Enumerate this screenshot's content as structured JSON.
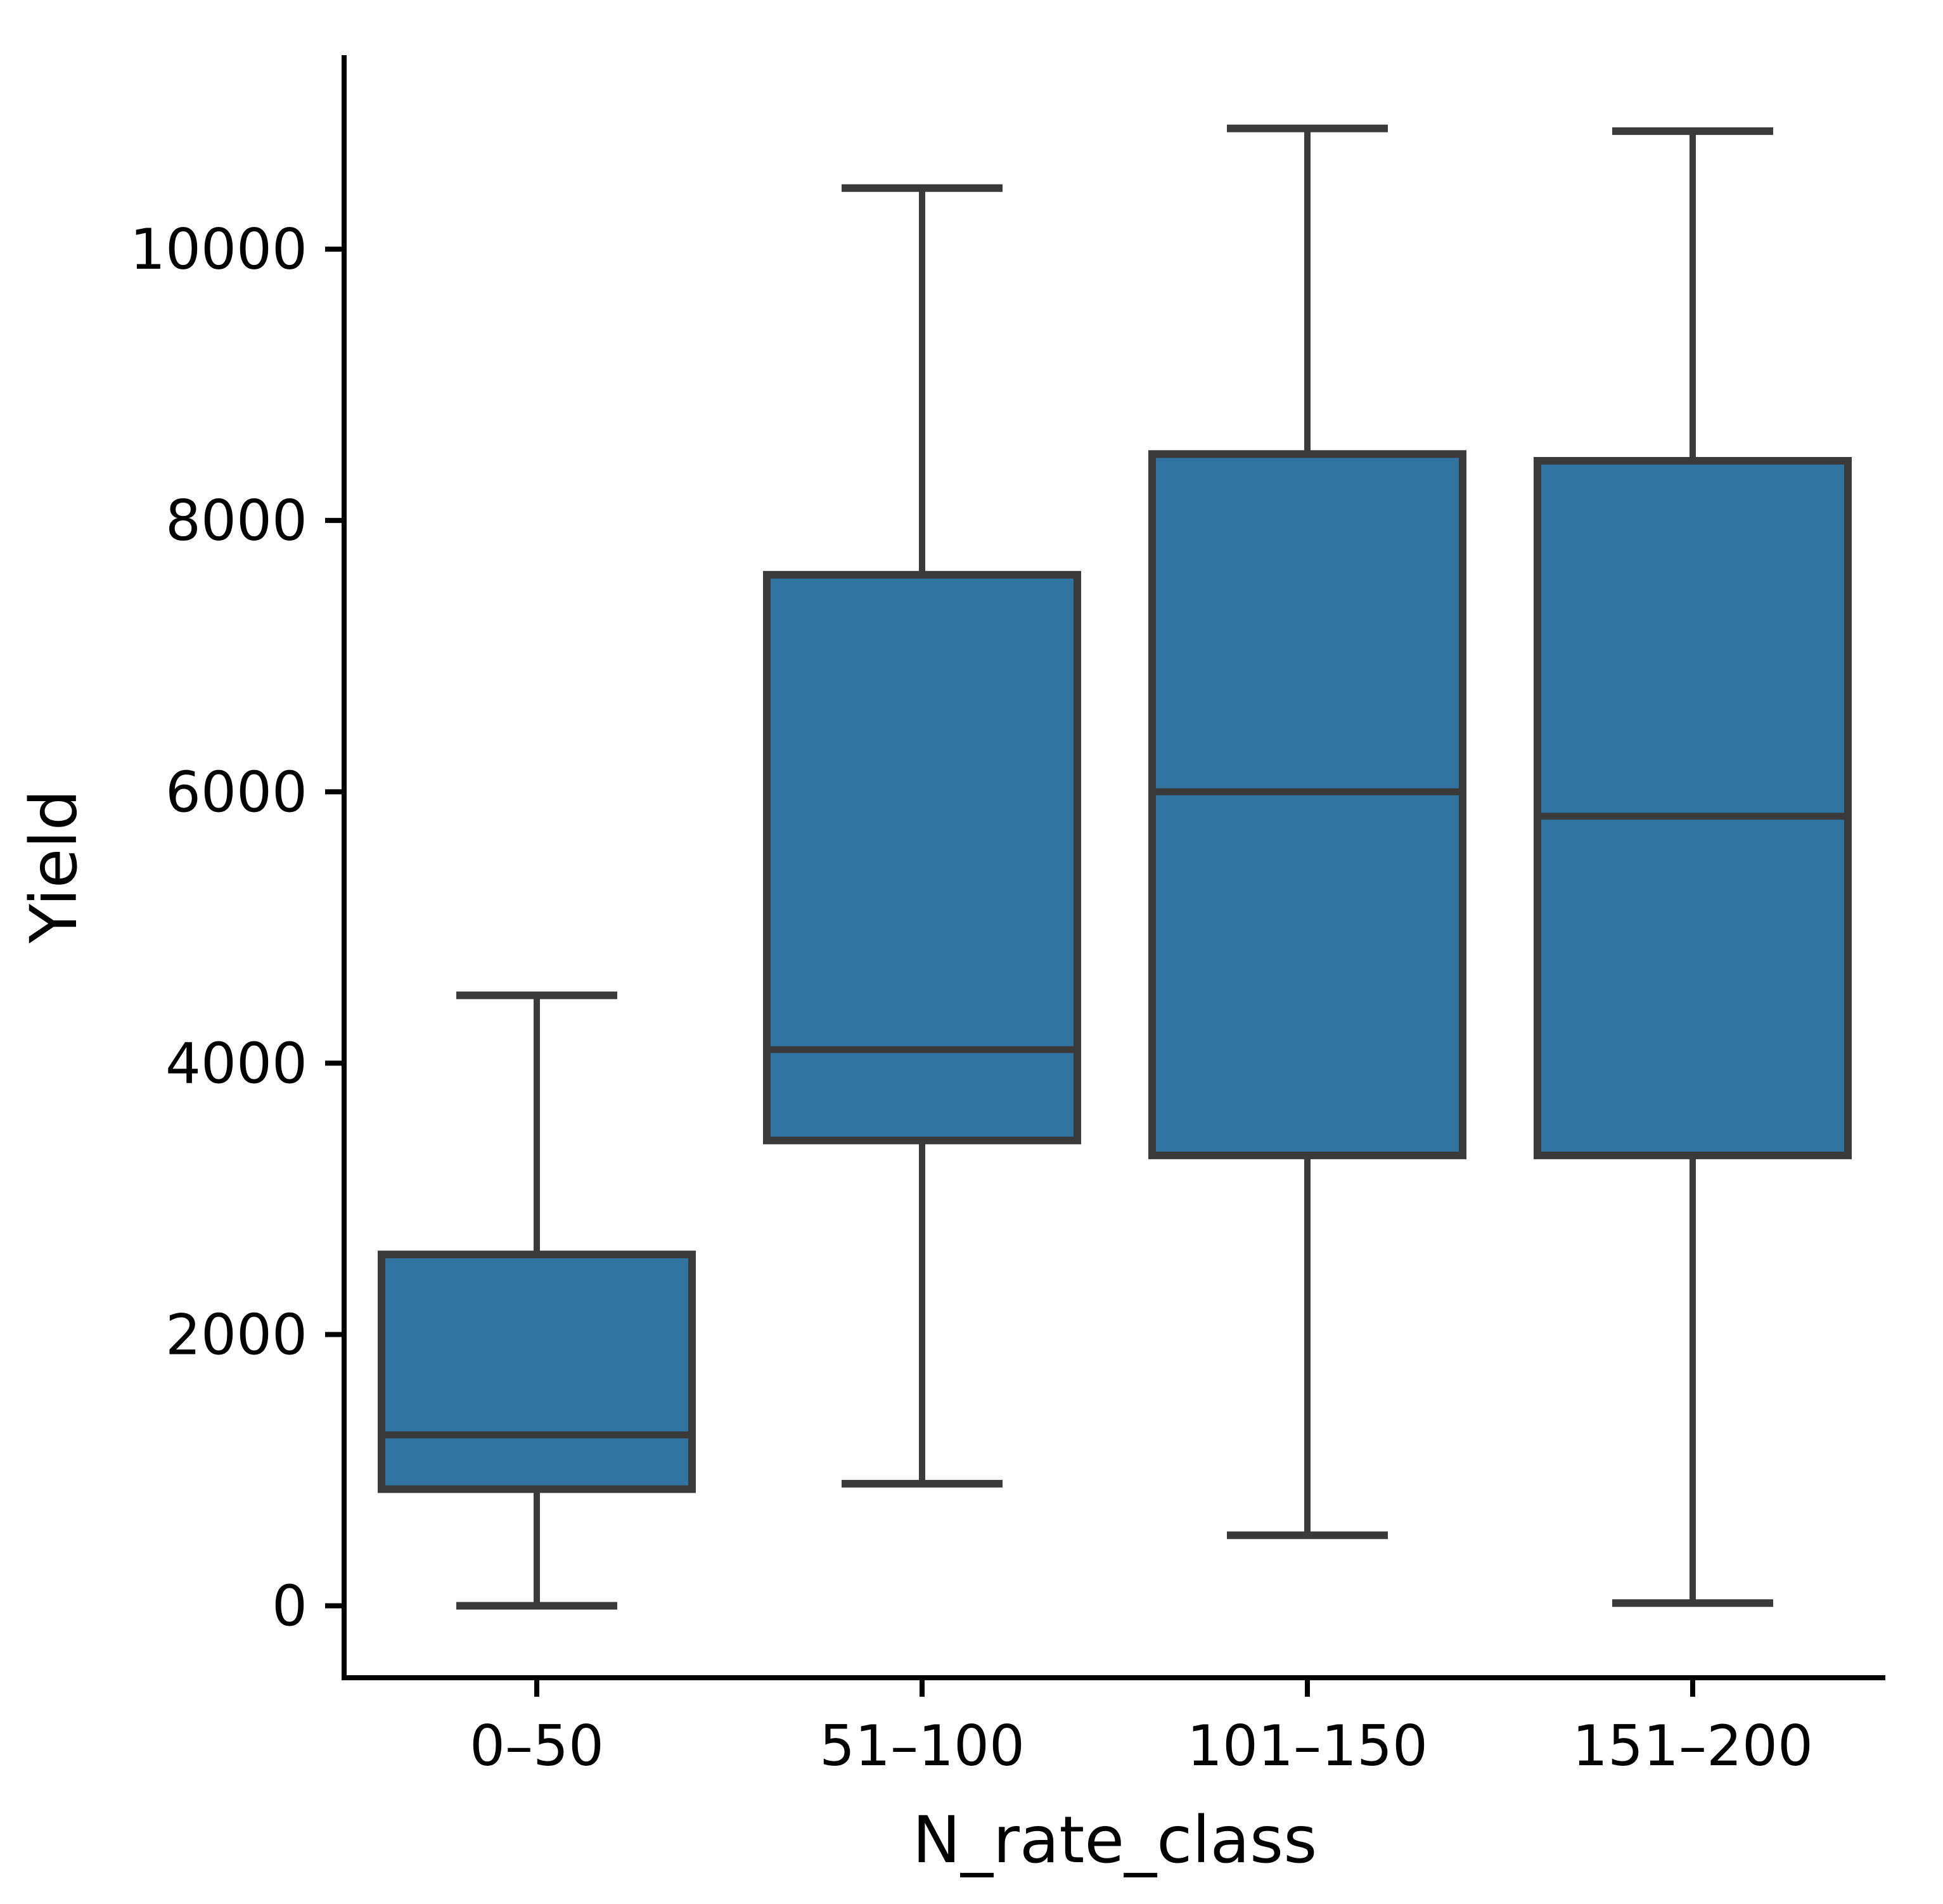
{
  "chart_data": {
    "type": "box",
    "title": "",
    "xlabel": "N_rate_class",
    "ylabel": "Yield",
    "categories": [
      "0–50",
      "51–100",
      "101–150",
      "151–200"
    ],
    "series": [
      {
        "category": "0–50",
        "whisker_low": 0,
        "q1": 860,
        "median": 1260,
        "q3": 2590,
        "whisker_high": 4500
      },
      {
        "category": "51–100",
        "whisker_low": 900,
        "q1": 3430,
        "median": 4100,
        "q3": 7600,
        "whisker_high": 10450
      },
      {
        "category": "101–150",
        "whisker_low": 520,
        "q1": 3320,
        "median": 6000,
        "q3": 8490,
        "whisker_high": 10890
      },
      {
        "category": "151–200",
        "whisker_low": 20,
        "q1": 3320,
        "median": 5820,
        "q3": 8440,
        "whisker_high": 10870
      }
    ],
    "yticks": [
      0,
      2000,
      4000,
      6000,
      8000,
      10000
    ],
    "ytick_labels": [
      "0",
      "2000",
      "4000",
      "6000",
      "8000",
      "10000"
    ],
    "ylim": [
      -530,
      11430
    ],
    "grid": false,
    "legend_position": "none",
    "colors": {
      "box_fill": "#3274a1",
      "box_edge": "#3a3a3a",
      "whisker": "#3a3a3a",
      "median": "#3a3a3a",
      "axis": "#000000",
      "background": "#ffffff"
    }
  }
}
